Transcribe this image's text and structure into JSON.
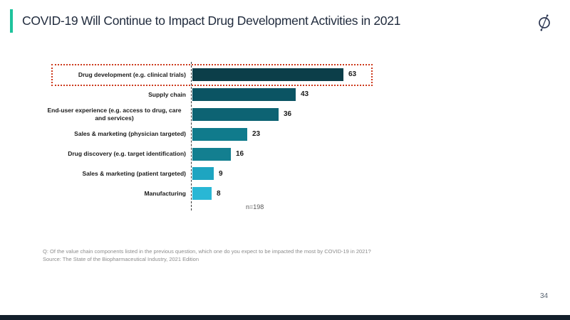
{
  "header": {
    "title": "COVID-19 Will Continue to Impact Drug Development Activities in 2021",
    "accent_color": "#1ec39c",
    "title_color": "#1f2a3c"
  },
  "logo": {
    "icon": "globaldata-logo-icon",
    "color": "#2b3550"
  },
  "chart_data": {
    "type": "bar",
    "orientation": "horizontal",
    "title": "",
    "xlabel": "",
    "ylabel": "",
    "categories": [
      "Drug development (e.g. clinical trials)",
      "Supply chain",
      "End-user experience (e.g. access to drug, care and services)",
      "Sales & marketing (physician targeted)",
      "Drug discovery (e.g. target identification)",
      "Sales & marketing (patient targeted)",
      "Manufacturing"
    ],
    "values": [
      63,
      43,
      36,
      23,
      16,
      9,
      8
    ],
    "bar_colors": [
      "#0c3e49",
      "#0b5463",
      "#0d6373",
      "#107b8c",
      "#137f90",
      "#1ea5c1",
      "#29b7d5"
    ],
    "xlim": [
      0,
      66
    ],
    "grid": false,
    "legend": false,
    "axis_style": "dashed-vertical-baseline",
    "data_labels": "end-of-bar",
    "highlight": {
      "category_index": 0,
      "style": "red-dotted-outline",
      "color": "#cd3a1d"
    },
    "sample_size_label": "n=198"
  },
  "footnotes": {
    "question": "Q: Of the value chain components listed in the previous question, which one do you expect to be impacted  the most by COVID-19 in 2021?",
    "source": "Source: The State of the Biopharmaceutical Industry, 2021 Edition"
  },
  "footer": {
    "page_number": "34",
    "strip_color": "#131f2b"
  }
}
